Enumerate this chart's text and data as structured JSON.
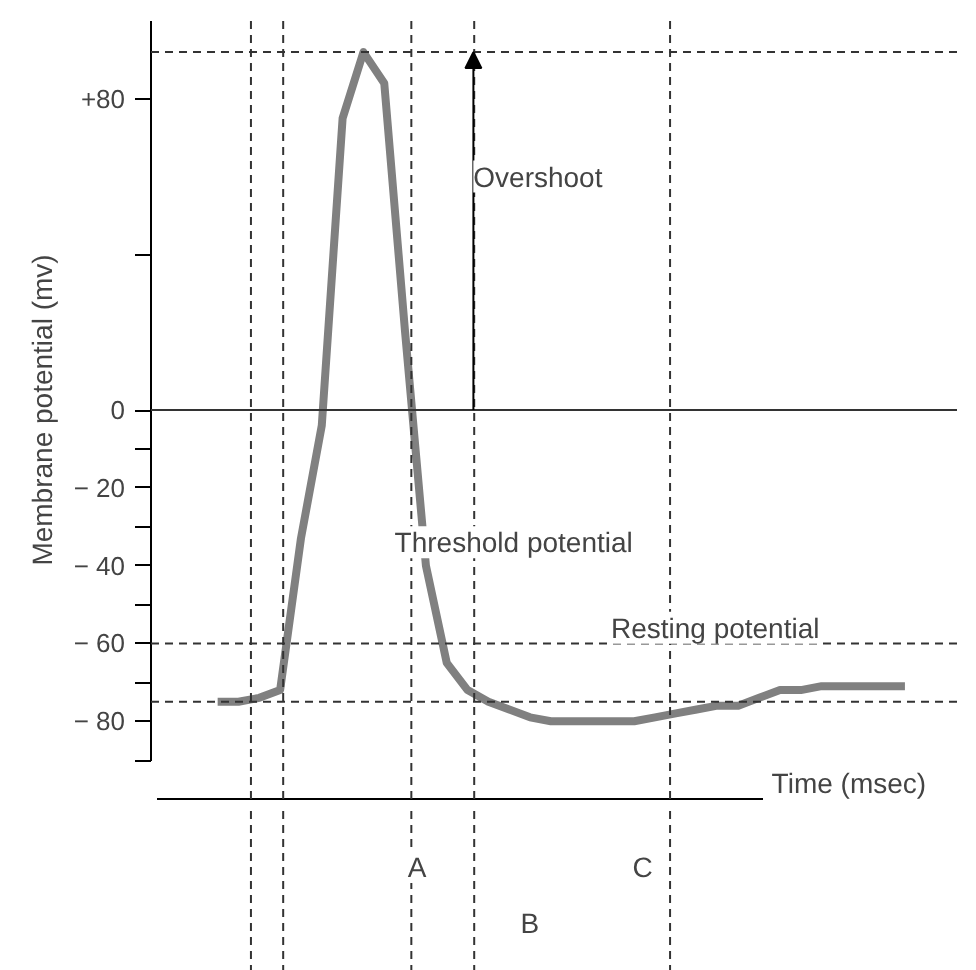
{
  "chart_data": {
    "type": "line",
    "ylabel": "Membrane potential (mv)",
    "xlabel": "Time (msec)",
    "categories": [
      null,
      null,
      null,
      null,
      null,
      null,
      null,
      null,
      null,
      null,
      null,
      null,
      null,
      null,
      null,
      null,
      null,
      null,
      null,
      null,
      null,
      null,
      null,
      null,
      null,
      null,
      null,
      null,
      null,
      null,
      null,
      null,
      null,
      null
    ],
    "series": [
      {
        "color": "#808080",
        "values": [
          -75,
          -75,
          -74,
          -72,
          -33,
          -4,
          75,
          92,
          84,
          20,
          -40,
          -65,
          -72,
          -75,
          -77,
          -79,
          -80,
          -80,
          -80,
          -80,
          -80,
          -79,
          -78,
          -77,
          -76,
          -76,
          -74,
          -72,
          -72,
          -71,
          -71,
          -71,
          -71,
          -71
        ]
      }
    ],
    "ylim": [
      -100,
      100
    ],
    "yticks": [
      {
        "value": 80,
        "label": "+80"
      },
      {
        "value": 0,
        "label": "0"
      },
      {
        "value": -20,
        "label": "− 20"
      },
      {
        "value": -40,
        "label": "− 40"
      },
      {
        "value": -60,
        "label": "− 60"
      },
      {
        "value": -80,
        "label": "− 80"
      }
    ],
    "tick_labels": "y",
    "grid": false,
    "marker": "none",
    "line_style": "solid",
    "ref_lines": [
      {
        "axis": "y",
        "value": 0,
        "line_style": "solid"
      },
      {
        "axis": "y",
        "value": -60,
        "line_style": "dashed"
      },
      {
        "axis": "y",
        "value": -75,
        "line_style": "dashed"
      },
      {
        "axis": "y",
        "value": 92,
        "line_style": "dashed"
      }
    ],
    "annotations": [
      "Overshoot",
      "Threshold potential",
      "Resting potential",
      "A",
      "B",
      "C"
    ]
  }
}
